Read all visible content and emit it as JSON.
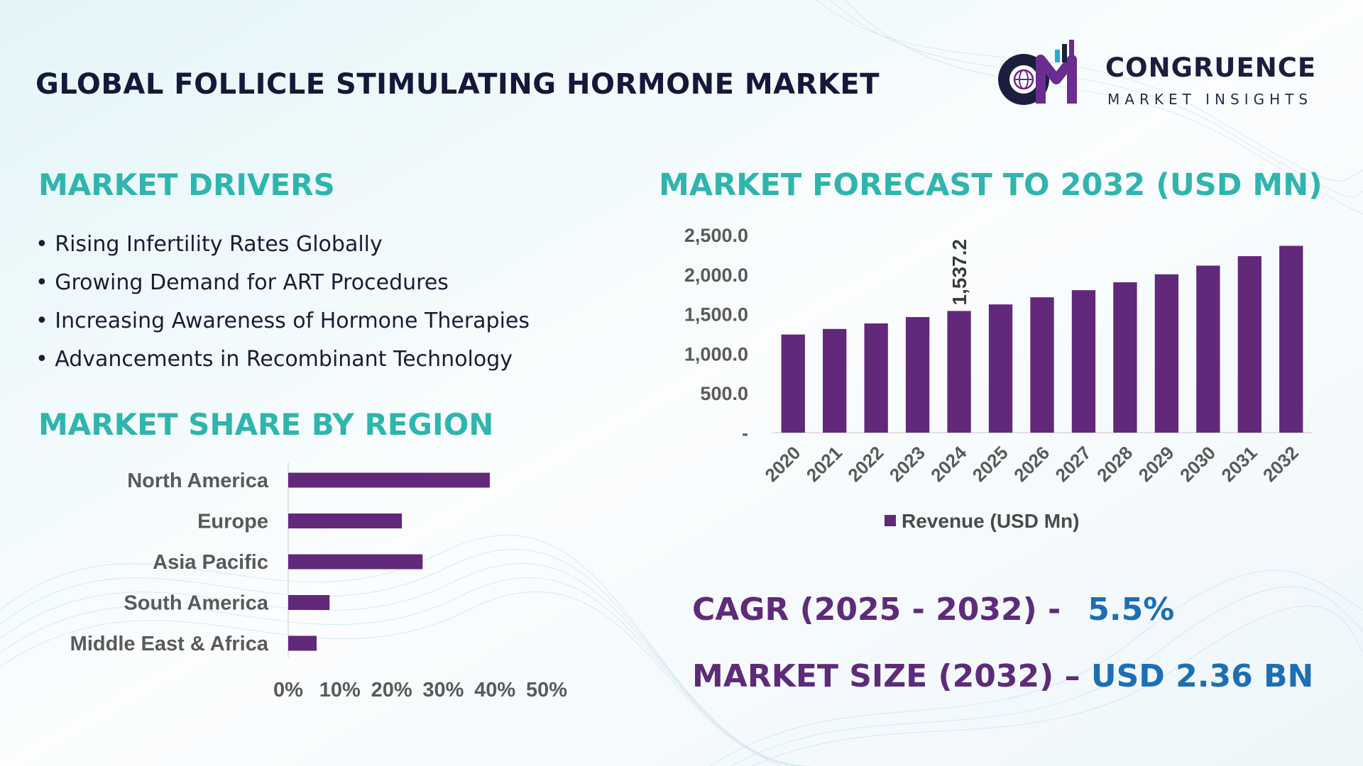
{
  "colors": {
    "title": "#14183a",
    "heading": "#2fb5ad",
    "bar": "#62287a",
    "stat_label": "#5e2b7a",
    "stat_value": "#1d6fb4",
    "logo_accent": "#6a2c8e"
  },
  "header": {
    "title": "GLOBAL FOLLICLE STIMULATING HORMONE MARKET"
  },
  "logo": {
    "mark": "CM",
    "name": "CONGRUENCE",
    "tagline": "MARKET INSIGHTS",
    "icon": "globe-bar-chart-icon"
  },
  "drivers": {
    "heading": "MARKET DRIVERS",
    "items": [
      "• Rising Infertility Rates Globally",
      "• Growing Demand for ART Procedures",
      "• Increasing Awareness of Hormone Therapies",
      "• Advancements in Recombinant Technology"
    ]
  },
  "region": {
    "heading": "MARKET SHARE BY REGION"
  },
  "forecast": {
    "heading": "MARKET FORECAST TO 2032 (USD MN)"
  },
  "stats": {
    "cagr_label": "CAGR (2025 - 2032) -",
    "cagr_value": "5.5%",
    "size_label": "MARKET SIZE (2032) –",
    "size_value": "USD 2.36 BN"
  },
  "chart_data": [
    {
      "type": "bar",
      "orientation": "vertical",
      "categories": [
        "2020",
        "2021",
        "2022",
        "2023",
        "2024",
        "2025",
        "2026",
        "2027",
        "2028",
        "2029",
        "2030",
        "2031",
        "2032"
      ],
      "series": [
        {
          "name": "Revenue (USD Mn)",
          "values": [
            1240,
            1310,
            1380,
            1460,
            1537.2,
            1620,
            1710,
            1800,
            1900,
            2000,
            2110,
            2230,
            2360
          ]
        }
      ],
      "data_labels": [
        {
          "category": "2024",
          "label": "1,537.2"
        }
      ],
      "y_ticks": [
        "-",
        "500.0",
        "1,000.0",
        "1,500.0",
        "2,000.0",
        "2,500.0"
      ],
      "ylim": [
        0,
        2500
      ],
      "legend": "bottom",
      "grid": false
    },
    {
      "type": "bar",
      "orientation": "horizontal",
      "categories": [
        "North America",
        "Europe",
        "Asia Pacific",
        "South America",
        "Middle East & Africa"
      ],
      "values": [
        39,
        22,
        26,
        8,
        5.5
      ],
      "x_ticks": [
        "0%",
        "10%",
        "20%",
        "30%",
        "40%",
        "50%"
      ],
      "xlim": [
        0,
        50
      ],
      "grid": false
    }
  ]
}
